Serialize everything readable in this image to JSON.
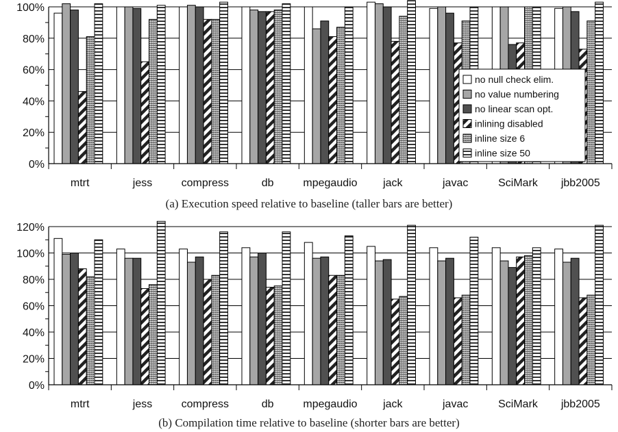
{
  "chart_data": [
    {
      "type": "bar",
      "title": "(a) Execution speed relative to baseline (taller bars are better)",
      "ylim": [
        0,
        100
      ],
      "yticks": [
        "0%",
        "20%",
        "40%",
        "60%",
        "80%",
        "100%"
      ],
      "ytick_values": [
        0,
        20,
        40,
        60,
        80,
        100
      ],
      "grid": true,
      "legend_position": "right",
      "categories": [
        "mtrt",
        "jess",
        "compress",
        "db",
        "mpegaudio",
        "jack",
        "javac",
        "SciMark",
        "jbb2005"
      ],
      "series": [
        {
          "name": "no null check elim.",
          "values": [
            96,
            100,
            100,
            100,
            100,
            103,
            99,
            100,
            99
          ]
        },
        {
          "name": "no value numbering",
          "values": [
            102,
            100,
            101,
            98,
            86,
            102,
            100,
            100,
            100
          ]
        },
        {
          "name": "no linear scan opt.",
          "values": [
            98,
            99,
            100,
            97,
            91,
            100,
            96,
            76,
            97
          ]
        },
        {
          "name": "inlining disabled",
          "values": [
            46,
            65,
            92,
            97,
            81,
            78,
            77,
            77,
            73
          ]
        },
        {
          "name": "inline size 6",
          "values": [
            81,
            92,
            92,
            98,
            87,
            94,
            91,
            100,
            91
          ]
        },
        {
          "name": "inline size 50",
          "values": [
            102,
            101,
            103,
            102,
            100,
            104,
            100,
            100,
            103
          ]
        }
      ]
    },
    {
      "type": "bar",
      "title": "(b) Compilation time relative to baseline (shorter bars are better)",
      "ylim": [
        0,
        120
      ],
      "yticks": [
        "0%",
        "20%",
        "40%",
        "60%",
        "80%",
        "100%",
        "120%"
      ],
      "ytick_values": [
        0,
        20,
        40,
        60,
        80,
        100,
        120
      ],
      "grid": true,
      "categories": [
        "mtrt",
        "jess",
        "compress",
        "db",
        "mpegaudio",
        "jack",
        "javac",
        "SciMark",
        "jbb2005"
      ],
      "series": [
        {
          "name": "no null check elim.",
          "values": [
            111,
            103,
            103,
            104,
            108,
            105,
            104,
            104,
            103
          ]
        },
        {
          "name": "no value numbering",
          "values": [
            99,
            96,
            93,
            97,
            96,
            94,
            94,
            94,
            93
          ]
        },
        {
          "name": "no linear scan opt.",
          "values": [
            100,
            96,
            97,
            100,
            97,
            95,
            96,
            89,
            96
          ]
        },
        {
          "name": "inlining disabled",
          "values": [
            88,
            73,
            80,
            74,
            83,
            65,
            66,
            97,
            66
          ]
        },
        {
          "name": "inline size 6",
          "values": [
            82,
            76,
            83,
            75,
            83,
            67,
            68,
            98,
            68
          ]
        },
        {
          "name": "inline size 50",
          "values": [
            110,
            124,
            116,
            116,
            113,
            121,
            112,
            104,
            121
          ]
        }
      ]
    }
  ]
}
